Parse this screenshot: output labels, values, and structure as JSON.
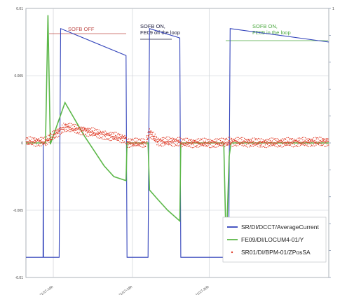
{
  "chart_data": {
    "type": "line",
    "title": "",
    "xlabel": "",
    "ylabel": "",
    "y_left": {
      "range": [
        -0.01,
        0.01
      ],
      "ticks": [
        "0.01",
        "0.005",
        "0",
        "-0.005",
        "-0.01"
      ]
    },
    "y_right": {
      "range": [
        -1,
        1
      ],
      "ticks": [
        "1",
        "",
        "",
        "",
        "",
        "",
        "",
        "",
        "",
        "",
        ""
      ]
    },
    "x_ticks": [
      "11/17-16h",
      "11/17-18h",
      "11/17-20h"
    ],
    "grid": true,
    "legend_position": "bottom-right",
    "annotations": [
      {
        "text": "SOFB OFF",
        "color": "#c0504d"
      },
      {
        "text": "SOFB ON,\nFE09 off the loop",
        "color": "#1a1a3a"
      },
      {
        "text": "SOFB ON,\nFE09 in the loop",
        "color": "#4aa83e"
      }
    ],
    "series": [
      {
        "name": "SR/DI/DCCT/AverageCurrent",
        "color": "#3344bb",
        "axis": "right",
        "points": [
          [
            0,
            -0.85
          ],
          [
            3.5,
            -0.85
          ],
          [
            3.55,
            0.0
          ],
          [
            3.6,
            -0.85
          ],
          [
            6.8,
            -0.85
          ],
          [
            7.1,
            0.85
          ],
          [
            20.5,
            0.65
          ],
          [
            20.7,
            -0.85
          ],
          [
            25.0,
            -0.85
          ],
          [
            25.3,
            0.85
          ],
          [
            31.5,
            0.78
          ],
          [
            31.7,
            -0.85
          ],
          [
            41.5,
            -0.85
          ],
          [
            41.8,
            0.85
          ],
          [
            62.0,
            0.75
          ]
        ]
      },
      {
        "name": "FE09/DI/LOCUM4-01/Y",
        "color": "#5db84a",
        "axis": "left",
        "points": [
          [
            0,
            0
          ],
          [
            4,
            0
          ],
          [
            4.5,
            0.0095
          ],
          [
            5,
            -0.0001
          ],
          [
            8,
            0.003
          ],
          [
            12,
            0.0005
          ],
          [
            16,
            -0.0017
          ],
          [
            18,
            -0.0025
          ],
          [
            20.5,
            -0.0028
          ],
          [
            20.7,
            0
          ],
          [
            25.0,
            0
          ],
          [
            25.3,
            -0.0035
          ],
          [
            27,
            -0.0042
          ],
          [
            29,
            -0.005
          ],
          [
            31.5,
            -0.0058
          ],
          [
            31.7,
            0
          ],
          [
            40.5,
            0
          ],
          [
            41.0,
            -0.008
          ],
          [
            41.6,
            -0.001
          ],
          [
            42,
            0
          ],
          [
            62,
            0
          ]
        ]
      },
      {
        "name": "SR01/DI/BPM-01/ZPosSA",
        "color": "#e03c28",
        "axis": "left",
        "points": [
          [
            0,
            0.0001
          ],
          [
            4,
            0.0001
          ],
          [
            8,
            0.0012
          ],
          [
            12,
            0.0009
          ],
          [
            16,
            0.0006
          ],
          [
            20.5,
            0.0003
          ],
          [
            20.7,
            0.0
          ],
          [
            24.5,
            0.0
          ],
          [
            25.3,
            0.0008
          ],
          [
            27,
            0.0001
          ],
          [
            31.5,
            0.0001
          ],
          [
            31.7,
            0.0
          ],
          [
            40.5,
            0.0
          ],
          [
            42,
            0.0001
          ],
          [
            48,
            0.0
          ],
          [
            62,
            0.0001
          ]
        ]
      }
    ]
  }
}
